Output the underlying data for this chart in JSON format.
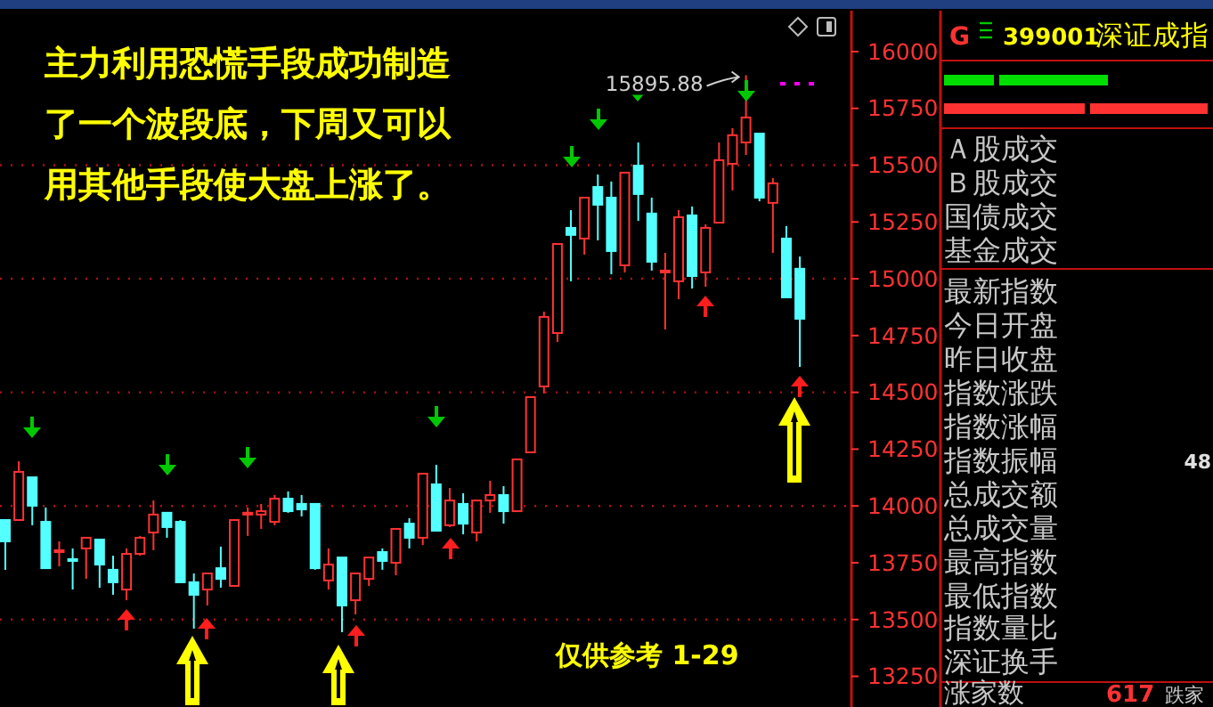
{
  "chart_data": [
    {
      "type": "candlestick",
      "title": "主力利用恐慌手段成功制造了一个波段底，下周又可以用其他手段使大盘上涨了。",
      "categories": [
        null,
        null,
        null,
        null,
        null,
        null,
        null,
        null,
        null,
        null,
        null,
        null,
        null,
        null,
        null,
        null,
        null,
        null,
        null,
        null,
        null,
        null,
        null,
        null,
        null,
        null,
        null,
        null,
        null,
        null,
        null,
        null,
        null,
        null,
        null,
        null,
        null,
        null,
        null,
        null,
        null,
        null,
        null,
        null,
        null,
        null,
        null,
        null,
        null,
        null,
        null,
        null,
        null,
        null,
        null,
        null,
        null,
        null,
        null,
        null
      ],
      "ohlc": [
        [
          13938,
          13938,
          13719,
          13844
        ],
        [
          13938,
          14197,
          13938,
          14150
        ],
        [
          14126,
          14126,
          13915,
          14001
        ],
        [
          13930,
          13993,
          13726,
          13726
        ],
        [
          13797,
          13844,
          13734,
          13805
        ],
        [
          13766,
          13813,
          13632,
          13758
        ],
        [
          13813,
          13860,
          13679,
          13860
        ],
        [
          13852,
          13852,
          13640,
          13742
        ],
        [
          13719,
          13781,
          13609,
          13664
        ],
        [
          13632,
          13813,
          13585,
          13789
        ],
        [
          13789,
          13868,
          13781,
          13860
        ],
        [
          13883,
          14024,
          13805,
          13962
        ],
        [
          13970,
          13970,
          13860,
          13907
        ],
        [
          13930,
          13938,
          13664,
          13664
        ],
        [
          13664,
          13703,
          13460,
          13609
        ],
        [
          13632,
          13703,
          13562,
          13703
        ],
        [
          13726,
          13821,
          13640,
          13679
        ],
        [
          13648,
          13938,
          13648,
          13938
        ],
        [
          13962,
          13993,
          13868,
          13970
        ],
        [
          13962,
          14009,
          13899,
          13977
        ],
        [
          13930,
          14048,
          13915,
          14032
        ],
        [
          14032,
          14064,
          13970,
          13977
        ],
        [
          14009,
          14048,
          13954,
          13985
        ],
        [
          14009,
          14009,
          13719,
          13726
        ],
        [
          13672,
          13813,
          13632,
          13742
        ],
        [
          13773,
          13773,
          13444,
          13562
        ],
        [
          13585,
          13703,
          13523,
          13703
        ],
        [
          13679,
          13773,
          13648,
          13773
        ],
        [
          13797,
          13813,
          13719,
          13758
        ],
        [
          13750,
          13899,
          13695,
          13899
        ],
        [
          13922,
          13946,
          13813,
          13860
        ],
        [
          13860,
          14142,
          13828,
          14142
        ],
        [
          14095,
          14181,
          13891,
          13891
        ],
        [
          13915,
          14079,
          13907,
          14024
        ],
        [
          14009,
          14056,
          13875,
          13922
        ],
        [
          13883,
          14024,
          13844,
          14024
        ],
        [
          14024,
          14111,
          13970,
          14048
        ],
        [
          14048,
          14087,
          13922,
          13977
        ],
        [
          13977,
          14205,
          13977,
          14205
        ],
        [
          14236,
          14479,
          14236,
          14479
        ],
        [
          14526,
          14855,
          14495,
          14832
        ],
        [
          14761,
          15153,
          14722,
          15153
        ],
        [
          15224,
          15302,
          14989,
          15193
        ],
        [
          15177,
          15357,
          15106,
          15357
        ],
        [
          15404,
          15459,
          15169,
          15326
        ],
        [
          15357,
          15428,
          15020,
          15122
        ],
        [
          15059,
          15467,
          15028,
          15467
        ],
        [
          15498,
          15600,
          15255,
          15373
        ],
        [
          15287,
          15357,
          15036,
          15075
        ],
        [
          15028,
          15114,
          14777,
          15036
        ],
        [
          14989,
          15302,
          14910,
          15271
        ],
        [
          15279,
          15318,
          14957,
          15012
        ],
        [
          15028,
          15240,
          14965,
          15224
        ],
        [
          15247,
          15600,
          15247,
          15522
        ],
        [
          15506,
          15663,
          15389,
          15632
        ],
        [
          15600,
          15895.88,
          15545,
          15710
        ],
        [
          15639,
          15639,
          15341,
          15357
        ],
        [
          15334,
          15443,
          15114,
          15420
        ],
        [
          15177,
          15232,
          14918,
          14918
        ],
        [
          15044,
          15098,
          14612,
          14824
        ]
      ],
      "colors": [
        "#54ffff",
        "#ff3232",
        "#54ffff",
        "#54ffff",
        "#ff3232",
        "#54ffff",
        "#ff3232",
        "#54ffff",
        "#54ffff",
        "#ff3232",
        "#ff3232",
        "#ff3232",
        "#54ffff",
        "#54ffff",
        "#54ffff",
        "#ff3232",
        "#54ffff",
        "#ff3232",
        "#ff3232",
        "#ff3232",
        "#ff3232",
        "#54ffff",
        "#54ffff",
        "#54ffff",
        "#ff3232",
        "#54ffff",
        "#ff3232",
        "#ff3232",
        "#54ffff",
        "#ff3232",
        "#54ffff",
        "#ff3232",
        "#54ffff",
        "#ff3232",
        "#54ffff",
        "#ff3232",
        "#ff3232",
        "#54ffff",
        "#ff3232",
        "#ff3232",
        "#ff3232",
        "#ff3232",
        "#54ffff",
        "#ff3232",
        "#54ffff",
        "#54ffff",
        "#ff3232",
        "#54ffff",
        "#54ffff",
        "#ff3232",
        "#ff3232",
        "#54ffff",
        "#ff3232",
        "#ff3232",
        "#ff3232",
        "#ff3232",
        "#54ffff",
        "#ff3232",
        "#54ffff",
        "#54ffff"
      ],
      "ylim": [
        13115,
        16180
      ],
      "yticks": [
        13250,
        13500,
        13750,
        14000,
        14250,
        14500,
        14750,
        15000,
        15250,
        15500,
        15750,
        16000
      ],
      "grid": "y",
      "tick_labels": "y",
      "annotations": [
        "15895.88",
        "仅供参考  1-29"
      ]
    },
    {
      "type": "other",
      "annotations": [
        "G",
        "399001",
        "深证成指",
        "Ａ股成交",
        "Ｂ股成交",
        "国债成交",
        "基金成交",
        "最新指数",
        "今日开盘",
        "昨日收盘",
        "指数涨跌",
        "指数涨幅",
        "指数振幅",
        "总成交额",
        "总成交量",
        "最高指数",
        "最低指数",
        "指数量比",
        "深证换手",
        "48",
        "涨家数",
        "617",
        "跌家"
      ]
    }
  ]
}
